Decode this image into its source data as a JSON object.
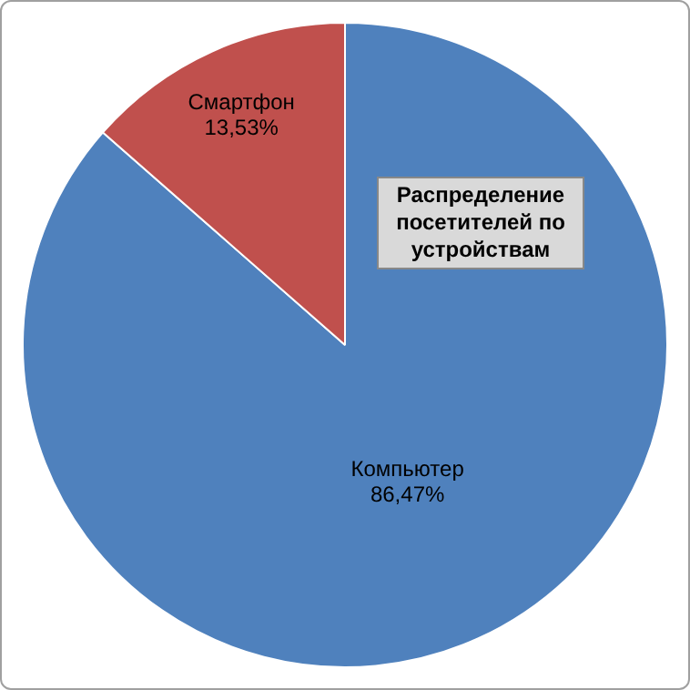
{
  "chart_data": {
    "type": "pie",
    "title": "Распределение посетителей по устройствам",
    "categories": [
      "Компьютер",
      "Смартфон"
    ],
    "values": [
      86.47,
      13.53
    ],
    "colors": [
      "#4f81bd",
      "#c0504d"
    ],
    "value_labels": [
      "86,47%",
      "13,53%"
    ],
    "legend": false
  }
}
